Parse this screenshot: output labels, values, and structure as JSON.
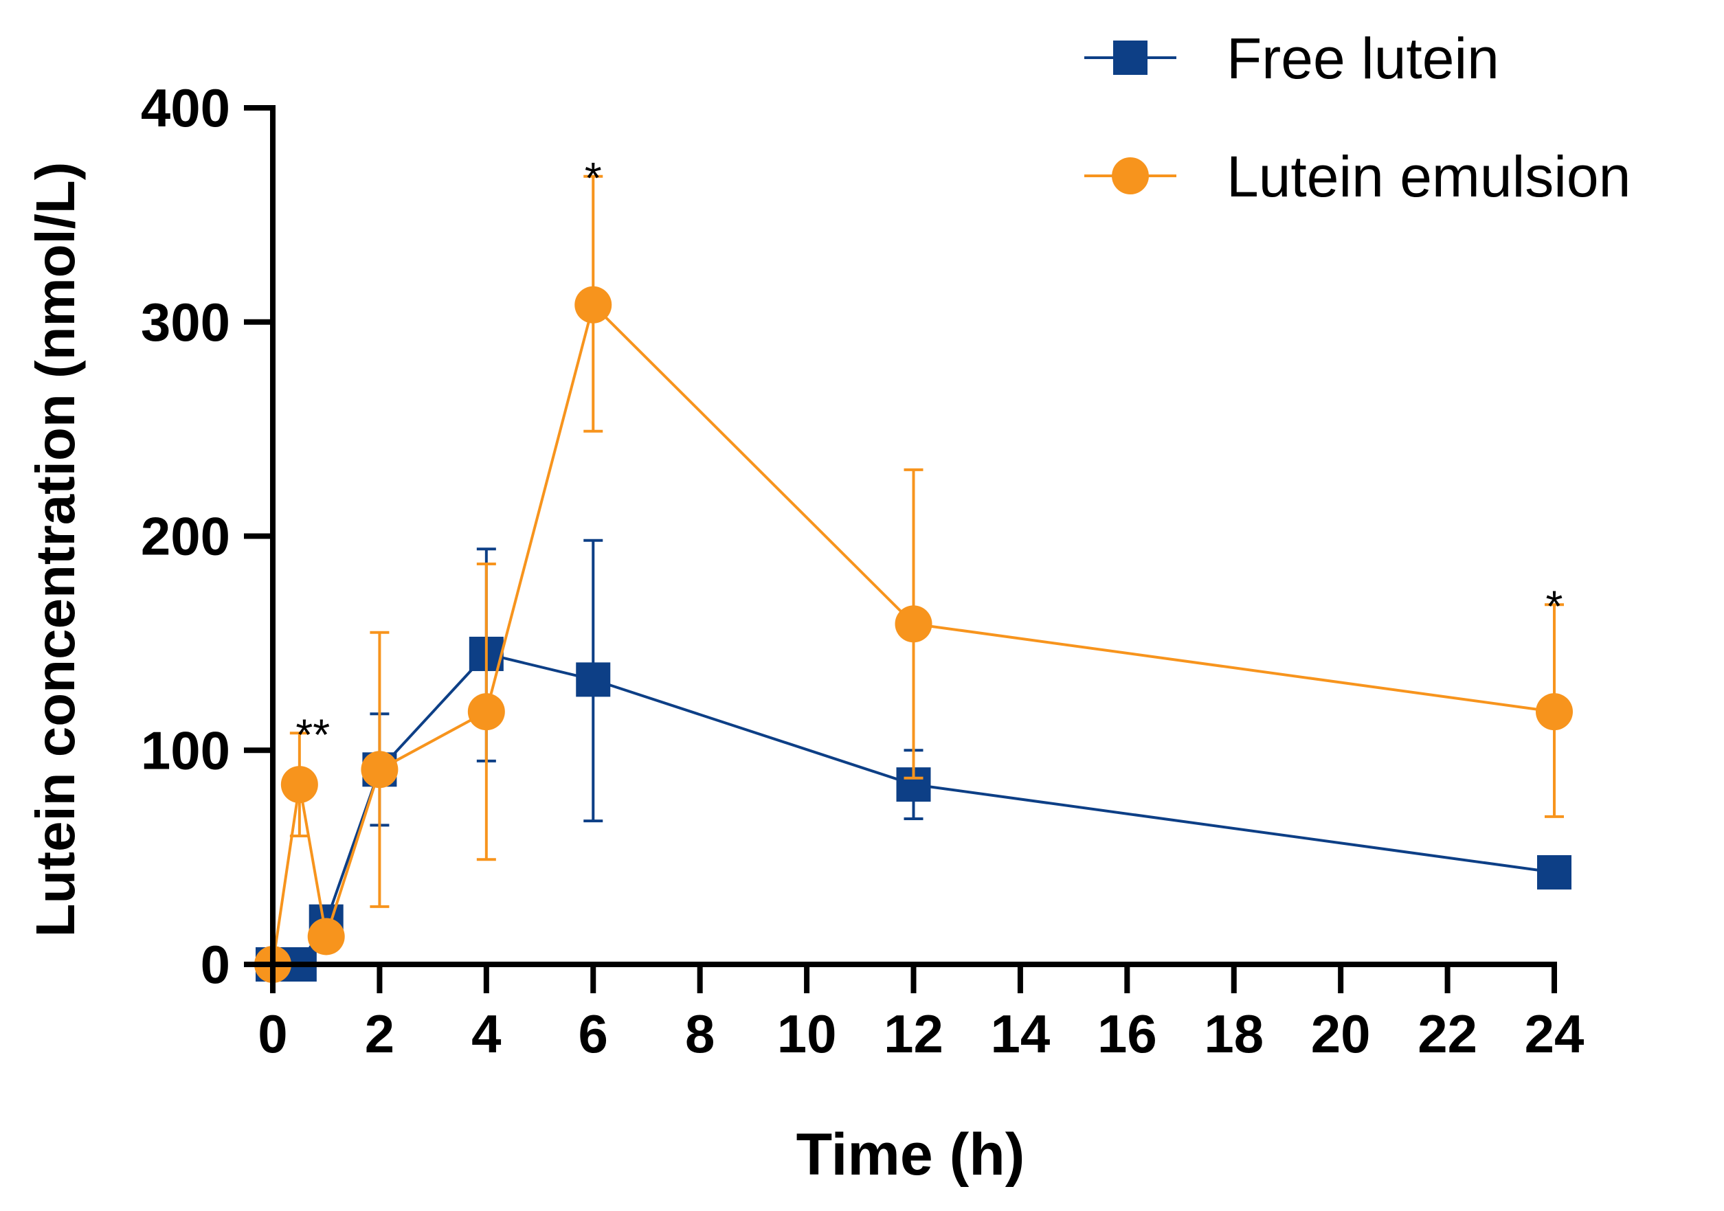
{
  "chart_data": {
    "type": "line",
    "title": "",
    "xlabel": "Time (h)",
    "ylabel": "Lutein concentration (nmol/L)",
    "xlim": [
      0,
      24
    ],
    "ylim": [
      0,
      400
    ],
    "xticks": [
      0,
      2,
      4,
      6,
      8,
      10,
      12,
      14,
      16,
      18,
      20,
      22,
      24
    ],
    "yticks": [
      0,
      100,
      200,
      300,
      400
    ],
    "grid": false,
    "legend_position": "top-right",
    "series": [
      {
        "name": "Free lutein",
        "color": "#0d3f86",
        "marker": "square",
        "x": [
          0,
          0.5,
          1,
          2,
          4,
          6,
          12,
          24
        ],
        "y": [
          0,
          0,
          20,
          91,
          145,
          133,
          84,
          43
        ],
        "err_upper": [
          0,
          0,
          0,
          117,
          194,
          198,
          100,
          0
        ],
        "err_lower": [
          0,
          0,
          0,
          65,
          95,
          67,
          68,
          0
        ]
      },
      {
        "name": "Lutein emulsion",
        "color": "#f7941d",
        "marker": "circle",
        "x": [
          0,
          0.5,
          1,
          2,
          4,
          6,
          12,
          24
        ],
        "y": [
          0,
          84,
          13,
          91,
          118,
          308,
          159,
          118
        ],
        "err_upper": [
          0,
          108,
          0,
          155,
          187,
          368,
          231,
          168
        ],
        "err_lower": [
          0,
          60,
          0,
          27,
          49,
          249,
          87,
          69
        ]
      }
    ],
    "annotations": [
      {
        "text": "**",
        "x": 0.75,
        "y": 113
      },
      {
        "text": "*",
        "x": 6,
        "y": 373
      },
      {
        "text": "*",
        "x": 24,
        "y": 173
      }
    ]
  }
}
